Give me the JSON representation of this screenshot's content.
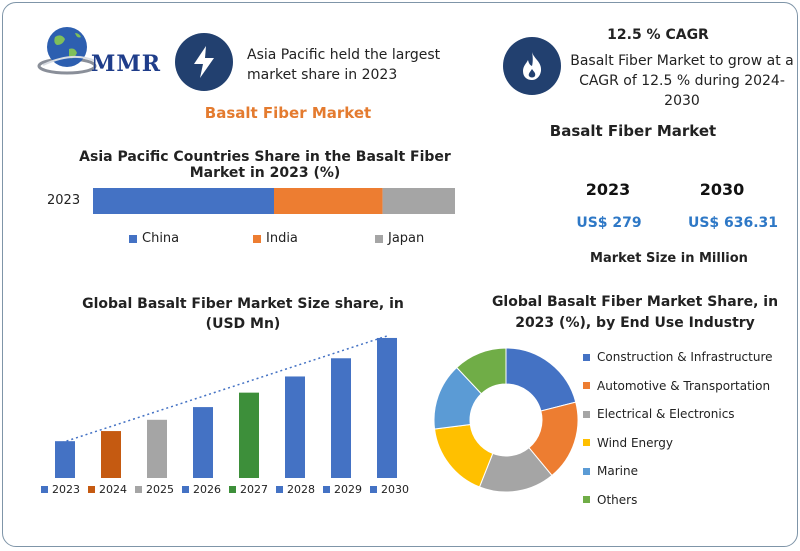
{
  "logo": {
    "text": "MMR"
  },
  "top_info": {
    "text": "Asia Pacific held the largest market share in 2023",
    "icon": "lightning-icon"
  },
  "cagr": {
    "heading": "12.5 % CAGR",
    "text": "Basalt Fiber Market to grow at a CAGR of 12.5 % during 2024-2030",
    "icon": "flame-icon"
  },
  "report_title": "Basalt Fiber Market",
  "market_size": {
    "title": "Basalt Fiber Market",
    "year1": "2023",
    "year2": "2030",
    "value1": "US$ 279",
    "value2": "US$ 636.31",
    "caption": "Market Size in Million"
  },
  "colors": {
    "blue": "#4472c4",
    "orange": "#ed7d31",
    "gray": "#a5a5a5",
    "yellow": "#ffc000",
    "light_blue": "#5b9bd5",
    "green": "#70ad47",
    "green_dark": "#3d8f3a",
    "brown": "#c55a11",
    "navy": "#22406f"
  },
  "chart_data": [
    {
      "type": "bar",
      "stacked": true,
      "orientation": "horizontal",
      "title": "Asia Pacific Countries Share in the  Basalt Fiber Market in 2023 (%)",
      "categories": [
        "2023"
      ],
      "series": [
        {
          "name": "China",
          "values": [
            50
          ],
          "color": "#4472c4"
        },
        {
          "name": "India",
          "values": [
            30
          ],
          "color": "#ed7d31"
        },
        {
          "name": "Japan",
          "values": [
            20
          ],
          "color": "#a5a5a5"
        }
      ],
      "xlim": [
        0,
        100
      ],
      "legend": "bottom"
    },
    {
      "type": "bar",
      "title": "Global Basalt Fiber Market Size share, in (USD Mn)",
      "categories": [
        "2023",
        "2024",
        "2025",
        "2026",
        "2027",
        "2028",
        "2029",
        "2030"
      ],
      "values": [
        279,
        314,
        353,
        397,
        447,
        503,
        566,
        636.31
      ],
      "colors": [
        "#4472c4",
        "#c55a11",
        "#a5a5a5",
        "#4472c4",
        "#3d8f3a",
        "#4472c4",
        "#4472c4",
        "#4472c4"
      ],
      "trendline": true,
      "ylim": [
        200,
        650
      ],
      "legend": "bottom"
    },
    {
      "type": "pie",
      "donut": true,
      "title": "Global Basalt Fiber Market  Share, in 2023 (%), by End Use Industry",
      "labels": [
        "Construction & Infrastructure",
        "Automotive & Transportation",
        "Electrical & Electronics",
        "Wind Energy",
        "Marine",
        "Others"
      ],
      "values": [
        21,
        18,
        17,
        17,
        15,
        12
      ],
      "colors": [
        "#4472c4",
        "#ed7d31",
        "#a5a5a5",
        "#ffc000",
        "#5b9bd5",
        "#70ad47"
      ],
      "legend": "right"
    }
  ]
}
